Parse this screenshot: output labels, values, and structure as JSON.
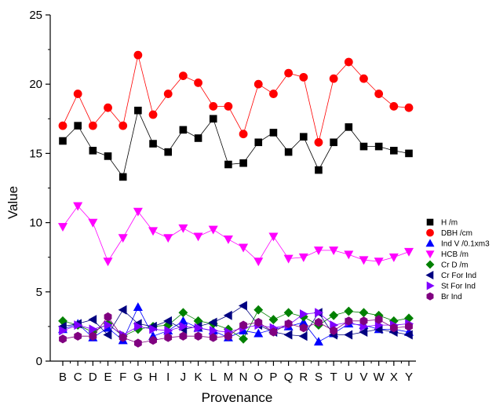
{
  "chart_data": {
    "type": "line",
    "title": "",
    "xlabel": "Provenance",
    "ylabel": "Value",
    "categories": [
      "B",
      "C",
      "D",
      "E",
      "F",
      "G",
      "H",
      "I",
      "J",
      "K",
      "L",
      "M",
      "N",
      "O",
      "P",
      "Q",
      "R",
      "S",
      "T",
      "U",
      "V",
      "W",
      "X",
      "Y"
    ],
    "ylim": [
      0,
      25
    ],
    "yticks": [
      0,
      5,
      10,
      15,
      20,
      25
    ],
    "grid": false,
    "legend_position": "right",
    "series": [
      {
        "name": "H /m",
        "color": "#000000",
        "marker": "square",
        "values": [
          15.9,
          17.0,
          15.2,
          14.8,
          13.3,
          18.1,
          15.7,
          15.1,
          16.7,
          16.1,
          17.5,
          14.2,
          14.3,
          15.8,
          16.5,
          15.1,
          16.2,
          13.8,
          15.8,
          16.9,
          15.5,
          15.5,
          15.2,
          15.0
        ]
      },
      {
        "name": "DBH /cm",
        "color": "#ff0000",
        "marker": "circle",
        "values": [
          17.0,
          19.3,
          17.0,
          18.3,
          17.0,
          22.1,
          17.8,
          19.3,
          20.6,
          20.1,
          18.4,
          18.4,
          16.4,
          20.0,
          19.3,
          20.8,
          20.5,
          15.8,
          20.4,
          21.6,
          20.4,
          19.3,
          18.4,
          18.3
        ]
      },
      {
        "name": "Ind V /0.1xm3",
        "color": "#0000ff",
        "marker": "triangle-up",
        "values": [
          2.3,
          2.7,
          1.7,
          2.4,
          1.5,
          3.9,
          1.8,
          2.2,
          2.9,
          2.4,
          2.2,
          1.7,
          2.2,
          2.0,
          2.3,
          2.5,
          2.8,
          1.4,
          2.0,
          2.7,
          2.6,
          2.3,
          2.3,
          2.1
        ]
      },
      {
        "name": "HCB /m",
        "color": "#ff00ff",
        "marker": "triangle-down",
        "values": [
          9.7,
          11.2,
          10.0,
          7.2,
          8.9,
          10.8,
          9.4,
          8.9,
          9.6,
          9.0,
          9.5,
          8.8,
          8.2,
          7.2,
          9.0,
          7.4,
          7.5,
          8.0,
          8.0,
          7.7,
          7.3,
          7.2,
          7.5,
          7.9
        ]
      },
      {
        "name": "Cr D /m",
        "color": "#008000",
        "marker": "diamond",
        "values": [
          2.9,
          2.6,
          2.1,
          2.7,
          1.8,
          2.3,
          2.5,
          2.6,
          3.5,
          2.9,
          2.7,
          2.3,
          1.6,
          3.7,
          3.0,
          3.5,
          3.2,
          2.6,
          3.3,
          3.6,
          3.5,
          3.3,
          2.9,
          3.1
        ]
      },
      {
        "name": "Cr For Ind",
        "color": "#000080",
        "marker": "triangle-left",
        "values": [
          2.5,
          2.7,
          3.0,
          1.9,
          3.7,
          2.7,
          2.5,
          2.9,
          2.3,
          2.5,
          2.8,
          3.3,
          4.0,
          2.6,
          2.1,
          1.9,
          1.8,
          3.5,
          1.9,
          1.9,
          2.1,
          2.3,
          2.1,
          1.9
        ]
      },
      {
        "name": "St For Ind",
        "color": "#8000ff",
        "marker": "triangle-right",
        "values": [
          2.2,
          2.6,
          2.3,
          2.6,
          1.9,
          2.5,
          2.3,
          2.2,
          2.5,
          2.4,
          2.2,
          2.1,
          2.4,
          2.6,
          2.4,
          2.6,
          3.4,
          3.5,
          2.6,
          2.8,
          2.5,
          2.6,
          2.6,
          2.7
        ]
      },
      {
        "name": "Br Ind",
        "color": "#800080",
        "marker": "hexagon",
        "values": [
          1.6,
          1.8,
          1.8,
          3.2,
          1.7,
          1.3,
          1.5,
          1.7,
          1.8,
          1.8,
          1.7,
          1.8,
          2.6,
          2.8,
          2.1,
          2.7,
          2.4,
          2.8,
          2.2,
          2.9,
          2.9,
          3.0,
          2.4,
          2.5
        ]
      }
    ]
  }
}
